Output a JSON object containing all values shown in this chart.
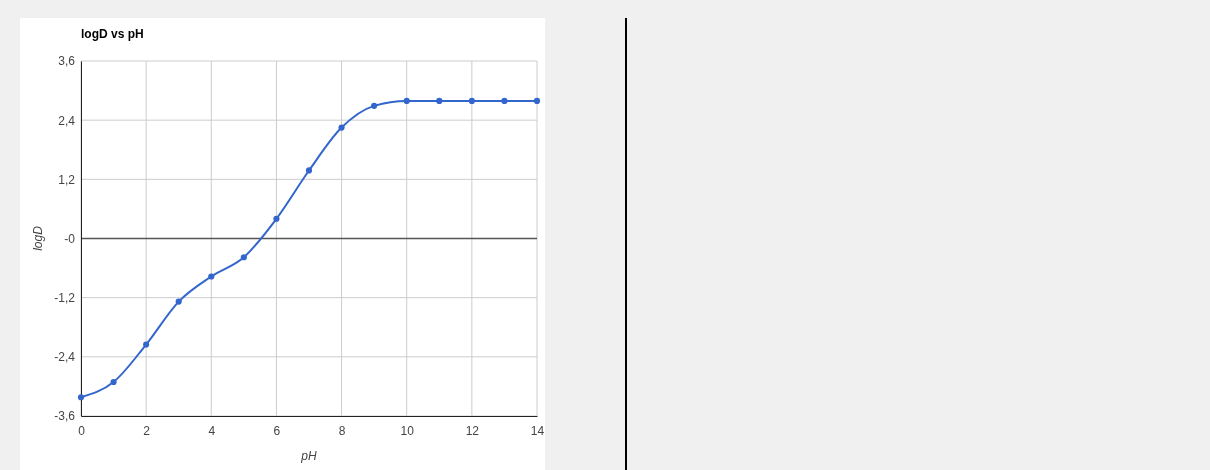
{
  "chart_data": {
    "type": "line",
    "title": "logD vs pH",
    "xlabel": "pH",
    "ylabel": "logD",
    "x": [
      0,
      1,
      2,
      3,
      4,
      5,
      6,
      7,
      8,
      9,
      10,
      11,
      12,
      13,
      14
    ],
    "series": [
      {
        "color": "#3366cc",
        "values": [
          -3.22,
          -2.91,
          -2.15,
          -1.28,
          -0.77,
          -0.38,
          0.4,
          1.38,
          2.25,
          2.69,
          2.79,
          2.79,
          2.79,
          2.79,
          2.79
        ]
      }
    ],
    "xlim": [
      0,
      14
    ],
    "xticks": [
      0,
      2,
      4,
      6,
      8,
      10,
      12,
      14
    ],
    "ylim": [
      -3.6,
      3.6
    ],
    "yticks": [
      {
        "value": -3.6,
        "label": "-3,6"
      },
      {
        "value": -2.4,
        "label": "-2,4"
      },
      {
        "value": -1.2,
        "label": "-1,2"
      },
      {
        "value": 0,
        "label": "-0"
      },
      {
        "value": 1.2,
        "label": "1,2"
      },
      {
        "value": 2.4,
        "label": "2,4"
      },
      {
        "value": 3.6,
        "label": "3,6"
      }
    ],
    "grid": true,
    "marker": "circle",
    "line_style": "solid"
  }
}
